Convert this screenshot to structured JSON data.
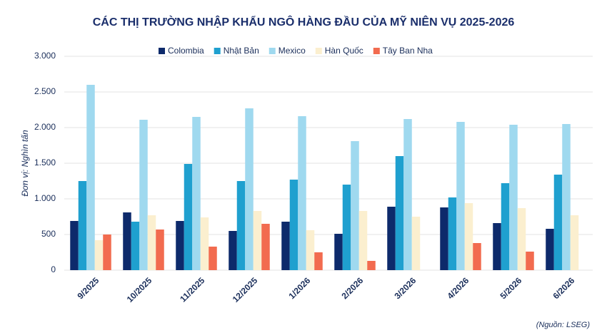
{
  "chart_data": {
    "type": "bar",
    "title": "CÁC THỊ TRƯỜNG NHẬP KHẨU NGÔ HÀNG ĐẦU CỦA MỸ NIÊN VỤ 2025-2026",
    "y_label": "Đơn vị: Nghìn tấn",
    "source": "(Nguồn: LSEG)",
    "categories": [
      "9/2025",
      "10/2025",
      "11/2025",
      "12/2025",
      "1/2026",
      "2/2026",
      "3/2026",
      "4/2026",
      "5/2026",
      "6/2026"
    ],
    "series": [
      {
        "name": "Colombia",
        "color": "#0d2a6b",
        "values": [
          690,
          810,
          690,
          550,
          680,
          510,
          890,
          880,
          660,
          580
        ]
      },
      {
        "name": "Nhật Bản",
        "color": "#1fa0cf",
        "values": [
          1250,
          680,
          1490,
          1250,
          1270,
          1200,
          1600,
          1020,
          1220,
          1340
        ]
      },
      {
        "name": "Mexico",
        "color": "#9fd9ef",
        "values": [
          2600,
          2110,
          2150,
          2270,
          2160,
          1810,
          2120,
          2080,
          2040,
          2050
        ]
      },
      {
        "name": "Hàn Quốc",
        "color": "#fbefcf",
        "values": [
          420,
          770,
          740,
          830,
          560,
          830,
          750,
          940,
          870,
          770
        ]
      },
      {
        "name": "Tây Ban Nha",
        "color": "#f26b4f",
        "values": [
          500,
          570,
          330,
          650,
          250,
          130,
          null,
          380,
          260,
          null
        ]
      }
    ],
    "ylim": [
      0,
      3000
    ],
    "yticks": [
      0,
      500,
      {
        "value": 1000,
        "label": "1.000"
      },
      {
        "value": 1500,
        "label": "1.500"
      },
      {
        "value": 2000,
        "label": "2.000"
      },
      {
        "value": 2500,
        "label": "2.500"
      },
      {
        "value": 3000,
        "label": "3.000"
      }
    ],
    "grid": true
  }
}
